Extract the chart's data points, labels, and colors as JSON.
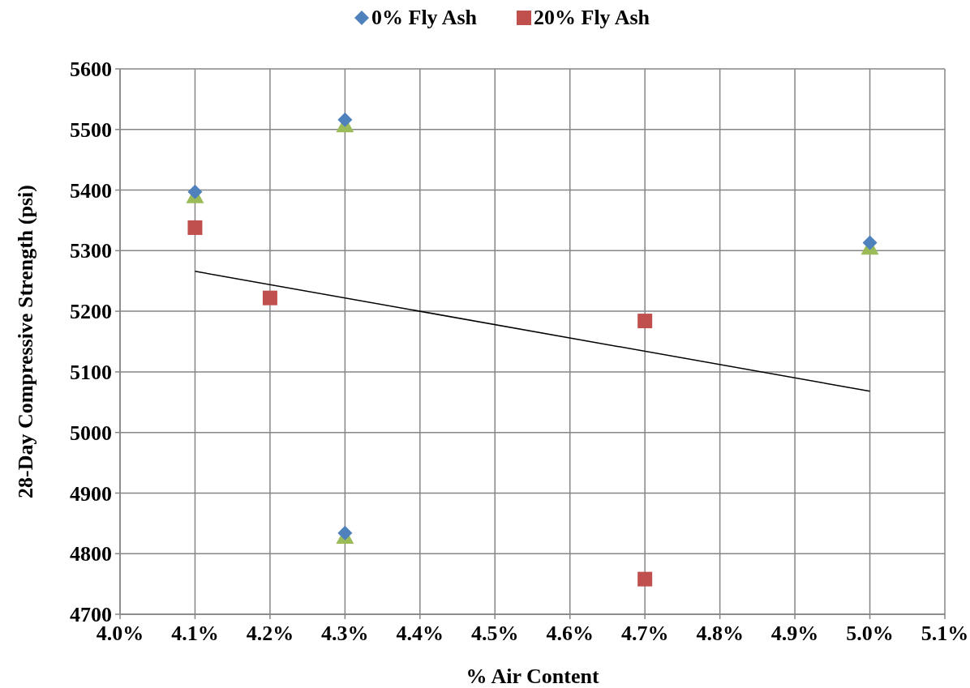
{
  "chart_data": {
    "type": "scatter",
    "xlabel": "% Air Content",
    "ylabel": "28-Day Compressive Strength (psi)",
    "xlim": [
      4.0,
      5.1
    ],
    "ylim": [
      4700,
      5600
    ],
    "xticks": [
      {
        "value": 4.0,
        "label": "4.0%"
      },
      {
        "value": 4.1,
        "label": "4.1%"
      },
      {
        "value": 4.2,
        "label": "4.2%"
      },
      {
        "value": 4.3,
        "label": "4.3%"
      },
      {
        "value": 4.4,
        "label": "4.4%"
      },
      {
        "value": 4.5,
        "label": "4.5%"
      },
      {
        "value": 4.6,
        "label": "4.6%"
      },
      {
        "value": 4.7,
        "label": "4.7%"
      },
      {
        "value": 4.8,
        "label": "4.8%"
      },
      {
        "value": 4.9,
        "label": "4.9%"
      },
      {
        "value": 5.0,
        "label": "5.0%"
      },
      {
        "value": 5.1,
        "label": "5.1%"
      }
    ],
    "yticks": [
      4700,
      4800,
      4900,
      5000,
      5100,
      5200,
      5300,
      5400,
      5500,
      5600
    ],
    "grid": true,
    "legend": "top",
    "series": [
      {
        "color": "#9bbb59",
        "marker": "triangle",
        "x": [
          4.1,
          4.3,
          4.3,
          5.0
        ],
        "values": [
          5393,
          5510,
          4831,
          5308
        ]
      },
      {
        "name": "0% Fly Ash",
        "color": "#4f81bd",
        "marker": "diamond",
        "x": [
          4.1,
          4.3,
          4.3,
          5.0
        ],
        "values": [
          5397,
          5516,
          4834,
          5313
        ]
      },
      {
        "name": "20% Fly Ash",
        "color": "#c0504d",
        "marker": "square",
        "x": [
          4.1,
          4.2,
          4.7,
          4.7
        ],
        "values": [
          5338,
          5222,
          5184,
          4758
        ]
      },
      {
        "type": "line",
        "color": "#000000",
        "marker": "none",
        "x": [
          4.1,
          5.0
        ],
        "values": [
          5266,
          5068
        ]
      }
    ]
  }
}
